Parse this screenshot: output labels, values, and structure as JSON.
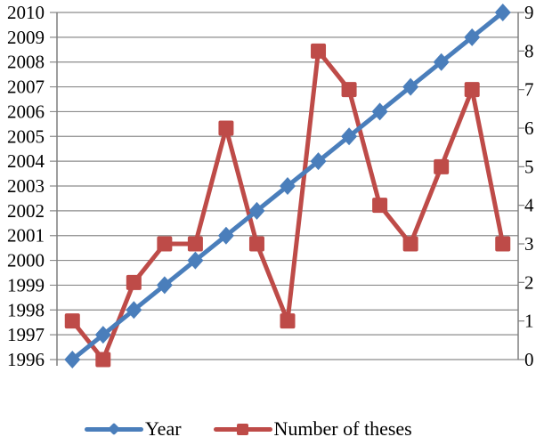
{
  "chart_data": {
    "type": "line",
    "title": "",
    "x_categories": [
      1996,
      1997,
      1998,
      1999,
      2000,
      2001,
      2002,
      2003,
      2004,
      2005,
      2006,
      2007,
      2008,
      2009,
      2010
    ],
    "series": [
      {
        "name": "Year",
        "axis": "left",
        "marker": "diamond",
        "color": "#4a7ebb",
        "values": [
          1996,
          1997,
          1998,
          1999,
          2000,
          2001,
          2002,
          2003,
          2004,
          2005,
          2006,
          2007,
          2008,
          2009,
          2010
        ]
      },
      {
        "name": "Number of theses",
        "axis": "right",
        "marker": "square",
        "color": "#be4b48",
        "values": [
          1,
          0,
          2,
          3,
          3,
          6,
          3,
          1,
          8,
          7,
          4,
          3,
          5,
          7,
          3
        ]
      }
    ],
    "left_axis": {
      "min": 1996,
      "max": 2010,
      "tick_step": 1,
      "tick_labels": [
        "1996",
        "1997",
        "1998",
        "1999",
        "2000",
        "2001",
        "2002",
        "2003",
        "2004",
        "2005",
        "2006",
        "2007",
        "2008",
        "2009",
        "2010"
      ]
    },
    "right_axis": {
      "min": 0,
      "max": 9,
      "tick_step": 1,
      "tick_labels": [
        "0",
        "1",
        "2",
        "3",
        "4",
        "5",
        "6",
        "7",
        "8",
        "9"
      ]
    },
    "grid": "horizontal line per year",
    "grid_color": "#8c8c8c",
    "axis_color": "#7f7f7f",
    "label_color": "#000000",
    "legend_position": "bottom"
  },
  "legend": {
    "items": [
      {
        "label": "Year"
      },
      {
        "label": "Number of theses"
      }
    ]
  }
}
